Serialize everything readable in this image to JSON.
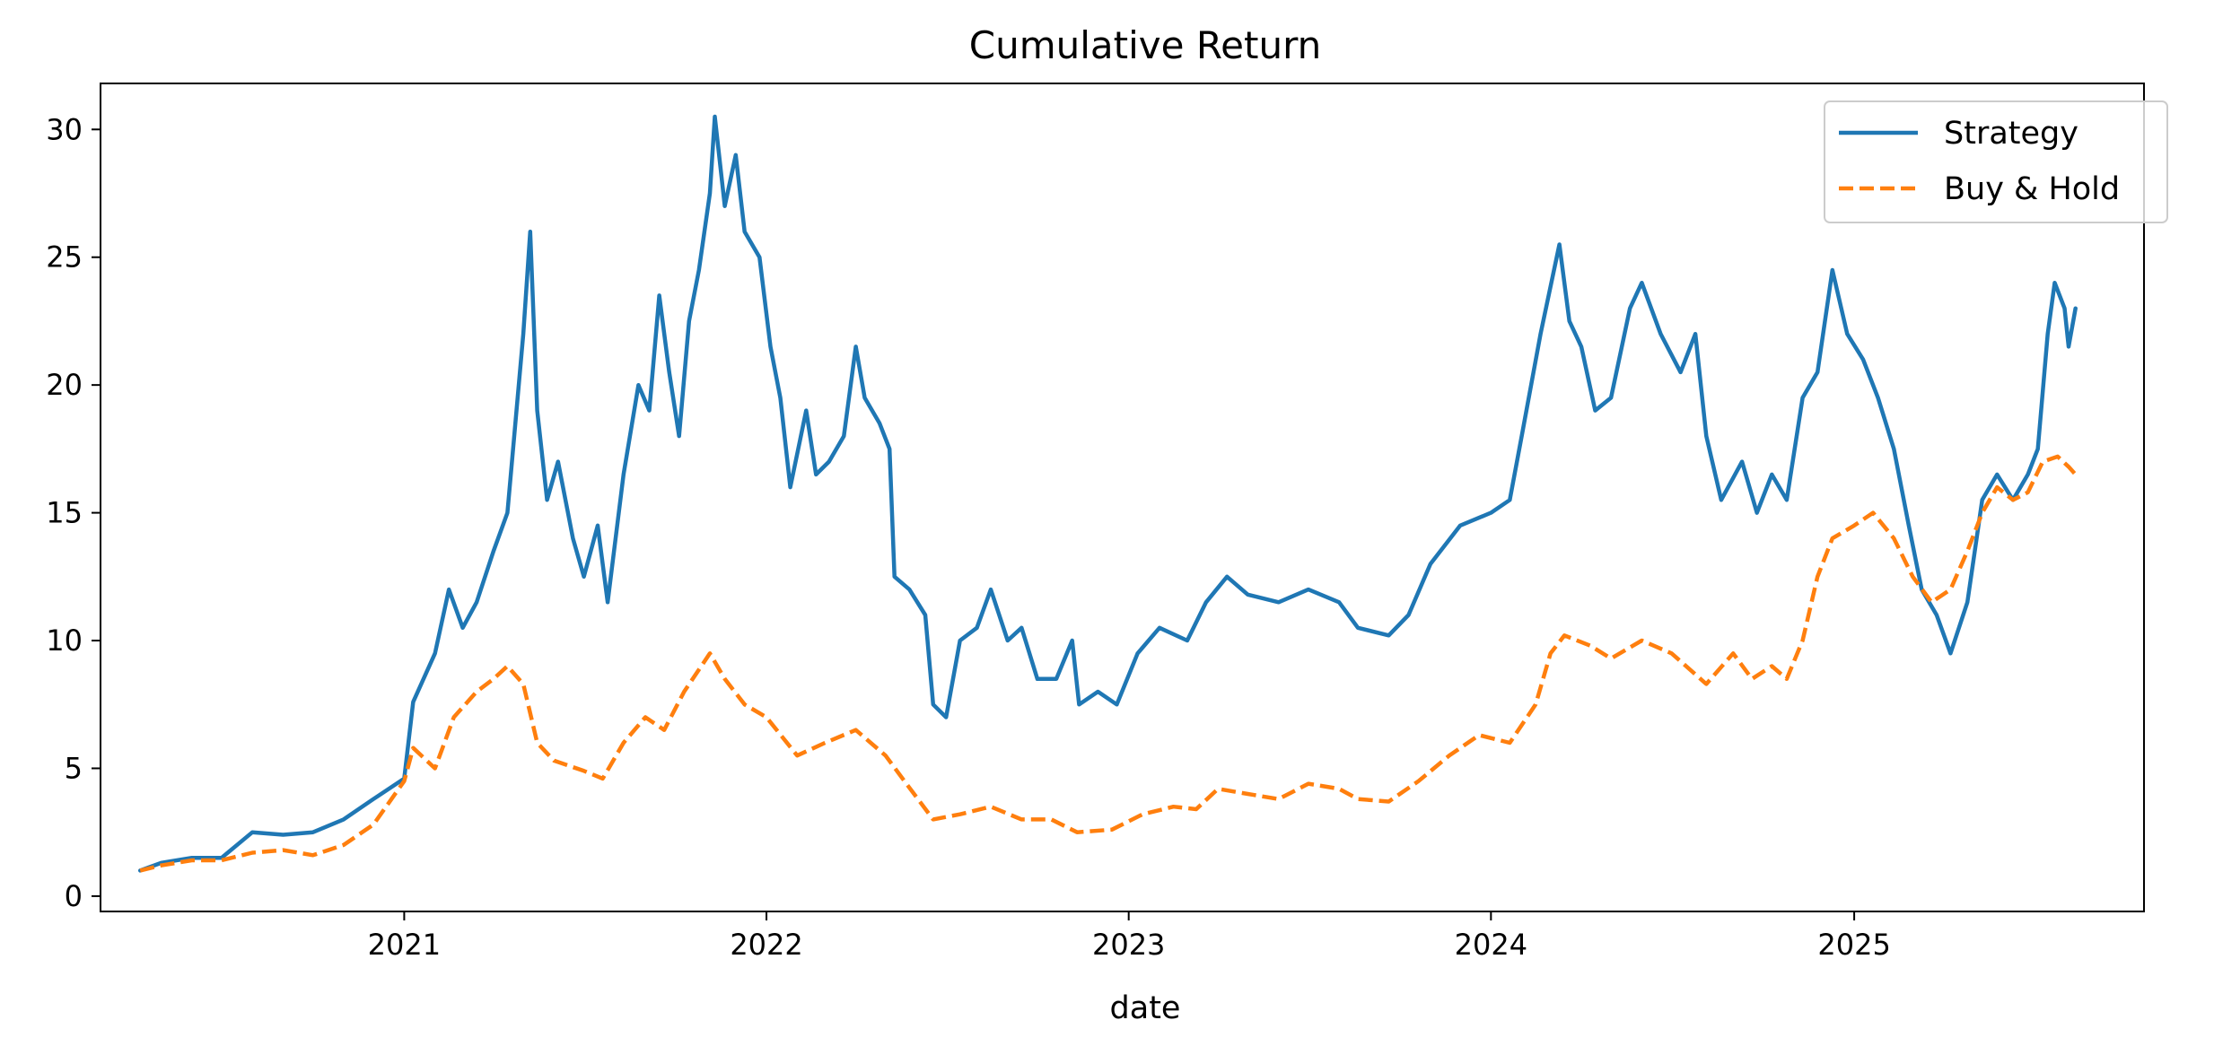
{
  "chart_data": {
    "type": "line",
    "title": "Cumulative Return",
    "xlabel": "date",
    "ylabel": "",
    "x_range": [
      "2020-03-01",
      "2025-10-20"
    ],
    "ylim": [
      -0.6,
      31.8
    ],
    "x_ticks": [
      {
        "date": "2021-01-01",
        "label": "2021"
      },
      {
        "date": "2022-01-01",
        "label": "2022"
      },
      {
        "date": "2023-01-01",
        "label": "2023"
      },
      {
        "date": "2024-01-01",
        "label": "2024"
      },
      {
        "date": "2025-01-01",
        "label": "2025"
      }
    ],
    "y_ticks": [
      0,
      5,
      10,
      15,
      20,
      25,
      30
    ],
    "grid": false,
    "legend": {
      "position": "top-right"
    },
    "series": [
      {
        "name": "Strategy",
        "color": "#1f77b4",
        "style": "solid",
        "points": [
          [
            "2020-04-10",
            1.0
          ],
          [
            "2020-05-01",
            1.3
          ],
          [
            "2020-06-01",
            1.5
          ],
          [
            "2020-07-01",
            1.5
          ],
          [
            "2020-08-01",
            2.5
          ],
          [
            "2020-09-01",
            2.4
          ],
          [
            "2020-10-01",
            2.5
          ],
          [
            "2020-11-01",
            3.0
          ],
          [
            "2020-12-01",
            3.8
          ],
          [
            "2021-01-01",
            4.6
          ],
          [
            "2021-01-10",
            7.6
          ],
          [
            "2021-02-01",
            9.5
          ],
          [
            "2021-02-15",
            12.0
          ],
          [
            "2021-03-01",
            10.5
          ],
          [
            "2021-03-15",
            11.5
          ],
          [
            "2021-04-01",
            13.5
          ],
          [
            "2021-04-15",
            15.0
          ],
          [
            "2021-05-01",
            22.0
          ],
          [
            "2021-05-08",
            26.0
          ],
          [
            "2021-05-15",
            19.0
          ],
          [
            "2021-05-25",
            15.5
          ],
          [
            "2021-06-05",
            17.0
          ],
          [
            "2021-06-20",
            14.0
          ],
          [
            "2021-07-01",
            12.5
          ],
          [
            "2021-07-15",
            14.5
          ],
          [
            "2021-07-25",
            11.5
          ],
          [
            "2021-08-10",
            16.5
          ],
          [
            "2021-08-25",
            20.0
          ],
          [
            "2021-09-05",
            19.0
          ],
          [
            "2021-09-15",
            23.5
          ],
          [
            "2021-09-25",
            20.5
          ],
          [
            "2021-10-05",
            18.0
          ],
          [
            "2021-10-15",
            22.5
          ],
          [
            "2021-10-25",
            24.5
          ],
          [
            "2021-11-05",
            27.5
          ],
          [
            "2021-11-10",
            30.5
          ],
          [
            "2021-11-20",
            27.0
          ],
          [
            "2021-12-01",
            29.0
          ],
          [
            "2021-12-10",
            26.0
          ],
          [
            "2021-12-25",
            25.0
          ],
          [
            "2022-01-05",
            21.5
          ],
          [
            "2022-01-15",
            19.5
          ],
          [
            "2022-01-25",
            16.0
          ],
          [
            "2022-02-10",
            19.0
          ],
          [
            "2022-02-20",
            16.5
          ],
          [
            "2022-03-05",
            17.0
          ],
          [
            "2022-03-20",
            18.0
          ],
          [
            "2022-04-01",
            21.5
          ],
          [
            "2022-04-10",
            19.5
          ],
          [
            "2022-04-25",
            18.5
          ],
          [
            "2022-05-05",
            17.5
          ],
          [
            "2022-05-10",
            12.5
          ],
          [
            "2022-05-25",
            12.0
          ],
          [
            "2022-06-10",
            11.0
          ],
          [
            "2022-06-18",
            7.5
          ],
          [
            "2022-07-01",
            7.0
          ],
          [
            "2022-07-15",
            10.0
          ],
          [
            "2022-08-01",
            10.5
          ],
          [
            "2022-08-15",
            12.0
          ],
          [
            "2022-09-01",
            10.0
          ],
          [
            "2022-09-15",
            10.5
          ],
          [
            "2022-10-01",
            8.5
          ],
          [
            "2022-10-20",
            8.5
          ],
          [
            "2022-11-05",
            10.0
          ],
          [
            "2022-11-12",
            7.5
          ],
          [
            "2022-12-01",
            8.0
          ],
          [
            "2022-12-20",
            7.5
          ],
          [
            "2023-01-10",
            9.5
          ],
          [
            "2023-02-01",
            10.5
          ],
          [
            "2023-03-01",
            10.0
          ],
          [
            "2023-03-20",
            11.5
          ],
          [
            "2023-04-10",
            12.5
          ],
          [
            "2023-05-01",
            11.8
          ],
          [
            "2023-06-01",
            11.5
          ],
          [
            "2023-07-01",
            12.0
          ],
          [
            "2023-08-01",
            11.5
          ],
          [
            "2023-08-20",
            10.5
          ],
          [
            "2023-09-20",
            10.2
          ],
          [
            "2023-10-10",
            11.0
          ],
          [
            "2023-11-01",
            13.0
          ],
          [
            "2023-12-01",
            14.5
          ],
          [
            "2024-01-01",
            15.0
          ],
          [
            "2024-01-20",
            15.5
          ],
          [
            "2024-02-01",
            18.0
          ],
          [
            "2024-02-20",
            22.0
          ],
          [
            "2024-03-10",
            25.5
          ],
          [
            "2024-03-20",
            22.5
          ],
          [
            "2024-04-01",
            21.5
          ],
          [
            "2024-04-15",
            19.0
          ],
          [
            "2024-05-01",
            19.5
          ],
          [
            "2024-05-20",
            23.0
          ],
          [
            "2024-06-01",
            24.0
          ],
          [
            "2024-06-20",
            22.0
          ],
          [
            "2024-07-10",
            20.5
          ],
          [
            "2024-07-25",
            22.0
          ],
          [
            "2024-08-05",
            18.0
          ],
          [
            "2024-08-20",
            15.5
          ],
          [
            "2024-09-10",
            17.0
          ],
          [
            "2024-09-25",
            15.0
          ],
          [
            "2024-10-10",
            16.5
          ],
          [
            "2024-10-25",
            15.5
          ],
          [
            "2024-11-10",
            19.5
          ],
          [
            "2024-11-25",
            20.5
          ],
          [
            "2024-12-10",
            24.5
          ],
          [
            "2024-12-25",
            22.0
          ],
          [
            "2025-01-10",
            21.0
          ],
          [
            "2025-01-25",
            19.5
          ],
          [
            "2025-02-10",
            17.5
          ],
          [
            "2025-02-25",
            14.5
          ],
          [
            "2025-03-10",
            12.0
          ],
          [
            "2025-03-25",
            11.0
          ],
          [
            "2025-04-08",
            9.5
          ],
          [
            "2025-04-25",
            11.5
          ],
          [
            "2025-05-10",
            15.5
          ],
          [
            "2025-05-25",
            16.5
          ],
          [
            "2025-06-10",
            15.5
          ],
          [
            "2025-06-25",
            16.5
          ],
          [
            "2025-07-05",
            17.5
          ],
          [
            "2025-07-15",
            22.0
          ],
          [
            "2025-07-22",
            24.0
          ],
          [
            "2025-08-01",
            23.0
          ],
          [
            "2025-08-05",
            21.5
          ],
          [
            "2025-08-12",
            23.0
          ]
        ]
      },
      {
        "name": "Buy & Hold",
        "color": "#ff7f0e",
        "style": "dashed",
        "points": [
          [
            "2020-04-10",
            1.0
          ],
          [
            "2020-05-01",
            1.2
          ],
          [
            "2020-06-01",
            1.4
          ],
          [
            "2020-07-01",
            1.4
          ],
          [
            "2020-08-01",
            1.7
          ],
          [
            "2020-09-01",
            1.8
          ],
          [
            "2020-10-01",
            1.6
          ],
          [
            "2020-11-01",
            2.0
          ],
          [
            "2020-12-01",
            2.8
          ],
          [
            "2021-01-01",
            4.5
          ],
          [
            "2021-01-10",
            5.8
          ],
          [
            "2021-02-01",
            5.0
          ],
          [
            "2021-02-20",
            7.0
          ],
          [
            "2021-03-15",
            8.0
          ],
          [
            "2021-04-01",
            8.5
          ],
          [
            "2021-04-15",
            9.0
          ],
          [
            "2021-05-01",
            8.3
          ],
          [
            "2021-05-15",
            6.0
          ],
          [
            "2021-06-01",
            5.3
          ],
          [
            "2021-07-01",
            4.9
          ],
          [
            "2021-07-20",
            4.6
          ],
          [
            "2021-08-10",
            6.0
          ],
          [
            "2021-09-01",
            7.0
          ],
          [
            "2021-09-20",
            6.5
          ],
          [
            "2021-10-10",
            8.0
          ],
          [
            "2021-11-05",
            9.5
          ],
          [
            "2021-11-20",
            8.5
          ],
          [
            "2021-12-10",
            7.5
          ],
          [
            "2022-01-01",
            7.0
          ],
          [
            "2022-02-01",
            5.5
          ],
          [
            "2022-03-01",
            6.0
          ],
          [
            "2022-04-01",
            6.5
          ],
          [
            "2022-05-01",
            5.5
          ],
          [
            "2022-05-20",
            4.5
          ],
          [
            "2022-06-18",
            3.0
          ],
          [
            "2022-07-15",
            3.2
          ],
          [
            "2022-08-15",
            3.5
          ],
          [
            "2022-09-15",
            3.0
          ],
          [
            "2022-10-15",
            3.0
          ],
          [
            "2022-11-10",
            2.5
          ],
          [
            "2022-12-15",
            2.6
          ],
          [
            "2023-01-15",
            3.2
          ],
          [
            "2023-02-15",
            3.5
          ],
          [
            "2023-03-10",
            3.4
          ],
          [
            "2023-04-01",
            4.2
          ],
          [
            "2023-05-01",
            4.0
          ],
          [
            "2023-06-01",
            3.8
          ],
          [
            "2023-07-01",
            4.4
          ],
          [
            "2023-08-01",
            4.2
          ],
          [
            "2023-08-20",
            3.8
          ],
          [
            "2023-09-20",
            3.7
          ],
          [
            "2023-10-20",
            4.5
          ],
          [
            "2023-11-20",
            5.5
          ],
          [
            "2023-12-20",
            6.3
          ],
          [
            "2024-01-20",
            6.0
          ],
          [
            "2024-02-15",
            7.5
          ],
          [
            "2024-03-01",
            9.5
          ],
          [
            "2024-03-15",
            10.2
          ],
          [
            "2024-04-10",
            9.8
          ],
          [
            "2024-05-01",
            9.3
          ],
          [
            "2024-06-01",
            10.0
          ],
          [
            "2024-07-01",
            9.5
          ],
          [
            "2024-08-05",
            8.3
          ],
          [
            "2024-09-01",
            9.5
          ],
          [
            "2024-09-20",
            8.5
          ],
          [
            "2024-10-10",
            9.0
          ],
          [
            "2024-10-25",
            8.5
          ],
          [
            "2024-11-10",
            10.0
          ],
          [
            "2024-11-25",
            12.5
          ],
          [
            "2024-12-10",
            14.0
          ],
          [
            "2025-01-01",
            14.5
          ],
          [
            "2025-01-20",
            15.0
          ],
          [
            "2025-02-10",
            14.0
          ],
          [
            "2025-03-01",
            12.5
          ],
          [
            "2025-03-20",
            11.5
          ],
          [
            "2025-04-08",
            12.0
          ],
          [
            "2025-04-25",
            13.5
          ],
          [
            "2025-05-10",
            15.0
          ],
          [
            "2025-05-25",
            16.0
          ],
          [
            "2025-06-10",
            15.5
          ],
          [
            "2025-06-25",
            15.8
          ],
          [
            "2025-07-10",
            17.0
          ],
          [
            "2025-07-25",
            17.2
          ],
          [
            "2025-08-05",
            16.8
          ],
          [
            "2025-08-12",
            16.5
          ]
        ]
      }
    ]
  }
}
